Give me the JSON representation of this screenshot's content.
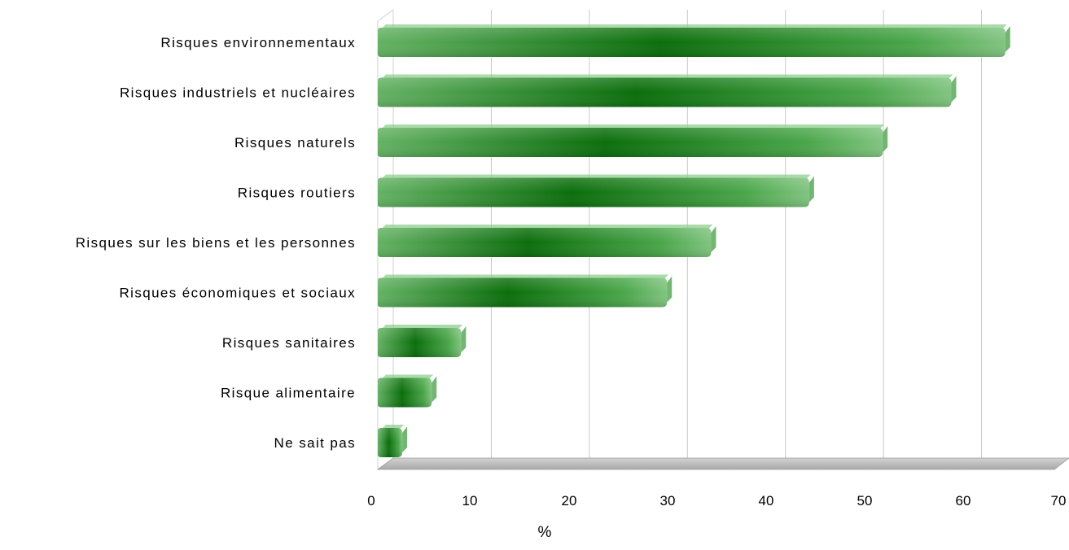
{
  "chart_data": {
    "type": "bar",
    "orientation": "horizontal",
    "categories": [
      "Risques environnementaux",
      "Risques industriels et nucléaires",
      "Risques naturels",
      "Risques routiers",
      "Risques sur les biens et les personnes",
      "Risques économiques et sociaux",
      "Risques sanitaires",
      "Risque alimentaire",
      "Ne sait pas"
    ],
    "values": [
      64,
      58.5,
      51.5,
      44,
      34,
      29.5,
      8.5,
      5.5,
      2.5
    ],
    "xlabel": "%",
    "ylabel": "",
    "xlim": [
      0,
      70
    ],
    "xticks": [
      "0",
      "10",
      "20",
      "30",
      "40",
      "50",
      "60",
      "70"
    ],
    "grid": "vertical",
    "colors": {
      "bar": "#3a9a3a",
      "bar_dark": "#0a6a0a",
      "bar_light": "#7cc27c",
      "floor": "#bdbdbd",
      "grid": "#c8c8c8"
    }
  }
}
